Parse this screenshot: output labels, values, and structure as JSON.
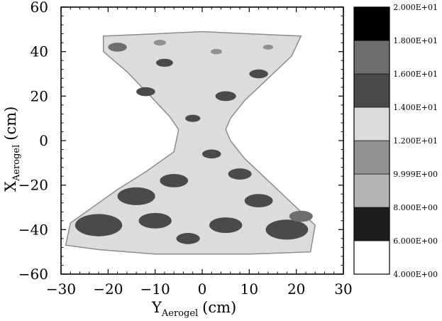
{
  "chart_data": {
    "type": "heatmap",
    "xlabel": {
      "main": "Y",
      "sub": "Aerogel",
      "unit": "(cm)"
    },
    "ylabel": {
      "main": "X",
      "sub": "Aerogel",
      "unit": "(cm)"
    },
    "xlim": [
      -30,
      30
    ],
    "ylim": [
      -60,
      60
    ],
    "x_ticks": [
      -30,
      -20,
      -10,
      0,
      10,
      20,
      30
    ],
    "y_ticks": [
      -60,
      -40,
      -20,
      0,
      20,
      40,
      60
    ],
    "x_tick_labels": [
      "−30",
      "−20",
      "−10",
      "0",
      "10",
      "20",
      "30"
    ],
    "y_tick_labels": [
      "−60",
      "−40",
      "−20",
      "0",
      "20",
      "40",
      "60"
    ],
    "colorbar": {
      "levels": [
        4.0,
        6.0,
        8.0,
        9.999,
        12.0,
        14.0,
        16.0,
        18.0,
        20.0
      ],
      "labels": [
        "4.000E+00",
        "6.000E+00",
        "8.000E+00",
        "9.999E+00",
        "1.200E+01",
        "1.400E+01",
        "1.600E+01",
        "1.800E+01",
        "2.000E+01"
      ],
      "colors": [
        "#ffffff",
        "#1e1e1e",
        "#b4b4b4",
        "#919191",
        "#dcdcdc",
        "#4a4a4a",
        "#6e6e6e",
        "#000000"
      ]
    },
    "region_outline": [
      [
        -21,
        47
      ],
      [
        -10,
        48
      ],
      [
        0,
        49
      ],
      [
        10,
        48
      ],
      [
        21,
        47
      ],
      [
        19,
        38
      ],
      [
        14,
        28
      ],
      [
        9,
        18
      ],
      [
        6,
        10
      ],
      [
        5,
        5
      ],
      [
        6,
        0
      ],
      [
        9,
        -8
      ],
      [
        14,
        -18
      ],
      [
        20,
        -30
      ],
      [
        24,
        -38
      ],
      [
        23,
        -50
      ],
      [
        10,
        -51
      ],
      [
        -10,
        -51
      ],
      [
        -22,
        -49
      ],
      [
        -29,
        -47
      ],
      [
        -28,
        -37
      ],
      [
        -24,
        -31
      ],
      [
        -18,
        -22
      ],
      [
        -12,
        -14
      ],
      [
        -6,
        -5
      ],
      [
        -5,
        5
      ],
      [
        -7,
        11
      ],
      [
        -11,
        20
      ],
      [
        -16,
        31
      ],
      [
        -21,
        40
      ]
    ],
    "field_level": 13.0,
    "dark_patches": [
      {
        "x": -18,
        "y": 42,
        "r": 2,
        "level": 17.0
      },
      {
        "x": -8,
        "y": 35,
        "r": 1.8,
        "level": 15.0
      },
      {
        "x": 12,
        "y": 30,
        "r": 2,
        "level": 15.0
      },
      {
        "x": -12,
        "y": 22,
        "r": 2,
        "level": 15.0
      },
      {
        "x": 5,
        "y": 20,
        "r": 2.2,
        "level": 15.0
      },
      {
        "x": -2,
        "y": 10,
        "r": 1.6,
        "level": 15.0
      },
      {
        "x": 2,
        "y": -6,
        "r": 2,
        "level": 15.0
      },
      {
        "x": -6,
        "y": -18,
        "r": 3,
        "level": 15.0
      },
      {
        "x": 8,
        "y": -15,
        "r": 2.5,
        "level": 15.0
      },
      {
        "x": -14,
        "y": -25,
        "r": 4,
        "level": 15.0
      },
      {
        "x": 12,
        "y": -27,
        "r": 3,
        "level": 15.0
      },
      {
        "x": -22,
        "y": -38,
        "r": 5,
        "level": 15.0
      },
      {
        "x": -10,
        "y": -36,
        "r": 3.5,
        "level": 15.0
      },
      {
        "x": 5,
        "y": -38,
        "r": 3.5,
        "level": 15.0
      },
      {
        "x": 18,
        "y": -40,
        "r": 4.5,
        "level": 15.0
      },
      {
        "x": -3,
        "y": -44,
        "r": 2.5,
        "level": 15.0
      },
      {
        "x": 21,
        "y": -34,
        "r": 2.5,
        "level": 17.0
      }
    ],
    "light_patches": [
      {
        "x": -9,
        "y": 44,
        "r": 1.3,
        "level": 11.0
      },
      {
        "x": 3,
        "y": 40,
        "r": 1.2,
        "level": 11.0
      },
      {
        "x": 14,
        "y": 42,
        "r": 1.1,
        "level": 11.0
      }
    ]
  }
}
